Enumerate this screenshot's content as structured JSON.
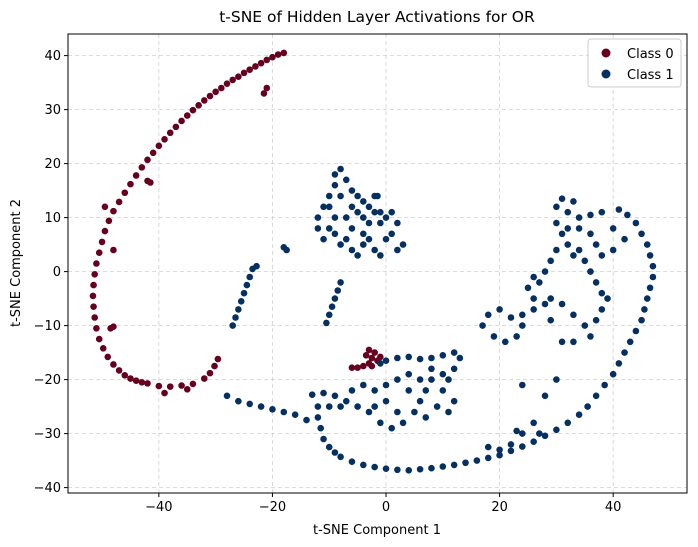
{
  "chart_data": {
    "type": "scatter",
    "title": "t-SNE of Hidden Layer Activations for OR",
    "xlabel": "t-SNE Component 1",
    "ylabel": "t-SNE Component 2",
    "xlim": [
      -56,
      53
    ],
    "ylim": [
      -41,
      44
    ],
    "xticks": [
      -40,
      -20,
      0,
      20,
      40
    ],
    "yticks": [
      -40,
      -30,
      -20,
      -10,
      0,
      10,
      20,
      30,
      40
    ],
    "grid": true,
    "legend_position": "top-right",
    "series": [
      {
        "name": "Class 0",
        "color": "#67001f",
        "points": [
          [
            -18,
            40.5
          ],
          [
            -19,
            40.2
          ],
          [
            -20,
            39.7
          ],
          [
            -21,
            39.2
          ],
          [
            -22,
            38.6
          ],
          [
            -23,
            38.0
          ],
          [
            -24,
            37.4
          ],
          [
            -25,
            36.8
          ],
          [
            -26,
            36.1
          ],
          [
            -27,
            35.5
          ],
          [
            -28,
            34.8
          ],
          [
            -29,
            34.0
          ],
          [
            -30,
            33.3
          ],
          [
            -31,
            32.5
          ],
          [
            -32,
            31.7
          ],
          [
            -33,
            30.8
          ],
          [
            -34,
            29.9
          ],
          [
            -35,
            28.9
          ],
          [
            -36,
            27.9
          ],
          [
            -37,
            26.8
          ],
          [
            -38,
            25.7
          ],
          [
            -39,
            24.5
          ],
          [
            -40,
            23.3
          ],
          [
            -41,
            22.0
          ],
          [
            -42,
            20.7
          ],
          [
            -43,
            19.3
          ],
          [
            -44,
            17.8
          ],
          [
            -45,
            16.2
          ],
          [
            -46,
            14.6
          ],
          [
            -47,
            12.9
          ],
          [
            -48,
            11.2
          ],
          [
            -48.8,
            9.4
          ],
          [
            -49.5,
            7.5
          ],
          [
            -50,
            5.5
          ],
          [
            -50.5,
            3.5
          ],
          [
            -51,
            1.5
          ],
          [
            -51.3,
            -0.5
          ],
          [
            -51.5,
            -2.5
          ],
          [
            -51.6,
            -4.5
          ],
          [
            -51.5,
            -6.5
          ],
          [
            -51.3,
            -8.5
          ],
          [
            -51,
            -10.5
          ],
          [
            -50.5,
            -12.5
          ],
          [
            -49.8,
            -14.2
          ],
          [
            -49,
            -15.8
          ],
          [
            -48,
            -17.2
          ],
          [
            -47,
            -18.3
          ],
          [
            -46,
            -19.2
          ],
          [
            -45,
            -19.8
          ],
          [
            -44,
            -20.2
          ],
          [
            -43,
            -20.5
          ],
          [
            -42,
            -20.7
          ],
          [
            -21.5,
            33
          ],
          [
            -21,
            34
          ],
          [
            -41.5,
            16.5
          ],
          [
            -42,
            16.8
          ],
          [
            -48,
            4
          ],
          [
            -49.5,
            12
          ],
          [
            -48,
            -10.2
          ],
          [
            -48.5,
            -10.5
          ],
          [
            -40,
            -21.2
          ],
          [
            -38,
            -21.3
          ],
          [
            -36,
            -21.1
          ],
          [
            -34,
            -20.8
          ],
          [
            -32,
            -19.8
          ],
          [
            -31,
            -18.8
          ],
          [
            -30.2,
            -17.5
          ],
          [
            -29.6,
            -16.2
          ],
          [
            -39,
            -22.5
          ],
          [
            -35,
            -21.8
          ],
          [
            -3.5,
            -15.5
          ],
          [
            -3,
            -14.5
          ],
          [
            -2.5,
            -16
          ],
          [
            -2,
            -15
          ],
          [
            -1.5,
            -16.5
          ],
          [
            -3,
            -17
          ],
          [
            -4,
            -17.5
          ],
          [
            -5,
            -17.8
          ],
          [
            -1,
            -15.8
          ],
          [
            -2.5,
            -17.5
          ],
          [
            -6,
            -17.8
          ]
        ]
      },
      {
        "name": "Class 1",
        "color": "#053061",
        "points": [
          [
            -27,
            -10
          ],
          [
            -26.5,
            -8.5
          ],
          [
            -26,
            -7
          ],
          [
            -25.5,
            -5.5
          ],
          [
            -25,
            -4
          ],
          [
            -24.5,
            -2.5
          ],
          [
            -24,
            -1
          ],
          [
            -23.5,
            0.5
          ],
          [
            -22.8,
            1
          ],
          [
            -18,
            4.5
          ],
          [
            -17.5,
            4
          ],
          [
            -10.5,
            -9.5
          ],
          [
            -10,
            -8
          ],
          [
            -9.5,
            -6.5
          ],
          [
            -9,
            -5
          ],
          [
            -8.5,
            -3.5
          ],
          [
            -8,
            -2
          ],
          [
            -12,
            10
          ],
          [
            -11,
            12
          ],
          [
            -10,
            14
          ],
          [
            -9,
            16
          ],
          [
            -9,
            18
          ],
          [
            -8,
            19
          ],
          [
            -7,
            17
          ],
          [
            -6,
            15
          ],
          [
            -5,
            14
          ],
          [
            -4,
            13
          ],
          [
            -3,
            12
          ],
          [
            -2,
            11
          ],
          [
            -1,
            11
          ],
          [
            -1.5,
            14
          ],
          [
            -2,
            14
          ],
          [
            -11,
            6
          ],
          [
            -10,
            8
          ],
          [
            -9,
            7
          ],
          [
            -8,
            5
          ],
          [
            -7,
            6
          ],
          [
            -6,
            4
          ],
          [
            -5,
            3
          ],
          [
            -4,
            5
          ],
          [
            -3,
            6
          ],
          [
            -2,
            4
          ],
          [
            -1,
            3
          ],
          [
            0,
            6
          ],
          [
            1,
            7
          ],
          [
            2,
            4
          ],
          [
            3,
            5
          ],
          [
            -9,
            10
          ],
          [
            -7,
            10
          ],
          [
            -5,
            11
          ],
          [
            -10,
            12
          ],
          [
            -8,
            14
          ],
          [
            -6,
            12
          ],
          [
            -4,
            10
          ],
          [
            -3,
            9
          ],
          [
            -1,
            9
          ],
          [
            0,
            10
          ],
          [
            1,
            11
          ],
          [
            2,
            9
          ],
          [
            -12,
            8
          ],
          [
            -6,
            8
          ],
          [
            -4,
            7
          ],
          [
            -1,
            -17
          ],
          [
            0,
            -16.5
          ],
          [
            2,
            -16
          ],
          [
            4,
            -15.8
          ],
          [
            6,
            -16.2
          ],
          [
            8,
            -16
          ],
          [
            10,
            -15.5
          ],
          [
            12,
            -15
          ],
          [
            13,
            -16
          ],
          [
            12,
            -18
          ],
          [
            10,
            -19
          ],
          [
            8,
            -20
          ],
          [
            7,
            -22
          ],
          [
            6,
            -24
          ],
          [
            5,
            -26
          ],
          [
            3,
            -28
          ],
          [
            1,
            -29
          ],
          [
            -1,
            -28
          ],
          [
            -3,
            -26
          ],
          [
            -5,
            -25
          ],
          [
            -7,
            -24
          ],
          [
            -9,
            -23
          ],
          [
            -11,
            -22.5
          ],
          [
            -13,
            -22.8
          ],
          [
            -6,
            -22
          ],
          [
            -4,
            -21
          ],
          [
            -2,
            -22
          ],
          [
            0,
            -21
          ],
          [
            2,
            -20
          ],
          [
            4,
            -22
          ],
          [
            6,
            -20
          ],
          [
            8,
            -18
          ],
          [
            10,
            -22
          ],
          [
            12,
            -24
          ],
          [
            11,
            -26
          ],
          [
            9,
            -25
          ],
          [
            7,
            -27
          ],
          [
            -2,
            -25
          ],
          [
            0,
            -24
          ],
          [
            2,
            -26
          ],
          [
            -10,
            -25
          ],
          [
            -8,
            -25
          ],
          [
            -12,
            -25
          ],
          [
            4,
            -19
          ],
          [
            11,
            -20
          ],
          [
            -12,
            -27
          ],
          [
            -11.5,
            -29
          ],
          [
            -11,
            -31
          ],
          [
            -10,
            -32.5
          ],
          [
            -9,
            -33.5
          ],
          [
            -8,
            -34.3
          ],
          [
            -6,
            -35.2
          ],
          [
            -4,
            -35.8
          ],
          [
            -2,
            -36.2
          ],
          [
            0,
            -36.5
          ],
          [
            2,
            -36.7
          ],
          [
            4,
            -36.8
          ],
          [
            6,
            -36.6
          ],
          [
            8,
            -36.4
          ],
          [
            10,
            -36.1
          ],
          [
            12,
            -35.8
          ],
          [
            14,
            -35.4
          ],
          [
            16,
            -35
          ],
          [
            18,
            -34.5
          ],
          [
            20,
            -34
          ],
          [
            22,
            -33.2
          ],
          [
            24,
            -32.4
          ],
          [
            26,
            -31.5
          ],
          [
            28,
            -30.4
          ],
          [
            30,
            -29.3
          ],
          [
            32,
            -28
          ],
          [
            34,
            -26.5
          ],
          [
            35.5,
            -25
          ],
          [
            37,
            -23
          ],
          [
            38.5,
            -21
          ],
          [
            40,
            -19
          ],
          [
            41,
            -17
          ],
          [
            42,
            -15
          ],
          [
            43,
            -13
          ],
          [
            44,
            -11
          ],
          [
            45,
            -9
          ],
          [
            45.5,
            -7
          ],
          [
            46,
            -5
          ],
          [
            46.5,
            -3
          ],
          [
            47,
            -1
          ],
          [
            47,
            1
          ],
          [
            46.5,
            3
          ],
          [
            46,
            5
          ],
          [
            45,
            7
          ],
          [
            44,
            9
          ],
          [
            42.5,
            10.5
          ],
          [
            41,
            11.5
          ],
          [
            22,
            -32
          ],
          [
            20,
            -33
          ],
          [
            24,
            -30
          ],
          [
            23,
            -29.5
          ],
          [
            26,
            -28
          ],
          [
            18,
            -32.5
          ],
          [
            27,
            -30
          ],
          [
            -28,
            -23
          ],
          [
            -26,
            -24
          ],
          [
            -24,
            -24.5
          ],
          [
            -22,
            -25
          ],
          [
            -20,
            -25.5
          ],
          [
            -18,
            -26
          ],
          [
            -16,
            -26.5
          ],
          [
            -14,
            -27.5
          ],
          [
            31,
            13.5
          ],
          [
            33,
            13
          ],
          [
            32,
            11
          ],
          [
            34,
            10
          ],
          [
            36,
            10.5
          ],
          [
            38,
            11
          ],
          [
            30,
            12
          ],
          [
            30,
            9
          ],
          [
            31,
            7
          ],
          [
            32,
            5
          ],
          [
            33,
            3
          ],
          [
            34,
            4
          ],
          [
            35,
            2
          ],
          [
            36,
            0
          ],
          [
            37,
            -2
          ],
          [
            38,
            -4
          ],
          [
            39,
            -5
          ],
          [
            38,
            -7
          ],
          [
            37,
            -9
          ],
          [
            35,
            -10
          ],
          [
            33,
            -8
          ],
          [
            31,
            -6
          ],
          [
            29,
            -5
          ],
          [
            28,
            -6
          ],
          [
            26,
            -7
          ],
          [
            24,
            -8
          ],
          [
            22,
            -8.5
          ],
          [
            20,
            -7
          ],
          [
            18,
            -8
          ],
          [
            17,
            -10
          ],
          [
            19,
            -12
          ],
          [
            21,
            -13
          ],
          [
            23,
            -12
          ],
          [
            24,
            -10
          ],
          [
            26,
            -5
          ],
          [
            25,
            -3
          ],
          [
            27,
            -2
          ],
          [
            28,
            0
          ],
          [
            29,
            2
          ],
          [
            30,
            4
          ],
          [
            32,
            8
          ],
          [
            34,
            8
          ],
          [
            36,
            7
          ],
          [
            37,
            5
          ],
          [
            38,
            3
          ],
          [
            40,
            4
          ],
          [
            42,
            6
          ],
          [
            40,
            8
          ],
          [
            26,
            -1
          ],
          [
            29,
            -9
          ],
          [
            31,
            -13
          ],
          [
            33,
            -13
          ],
          [
            36,
            -12
          ],
          [
            30,
            -20
          ],
          [
            28,
            -23
          ],
          [
            24,
            -21
          ]
        ]
      }
    ]
  }
}
